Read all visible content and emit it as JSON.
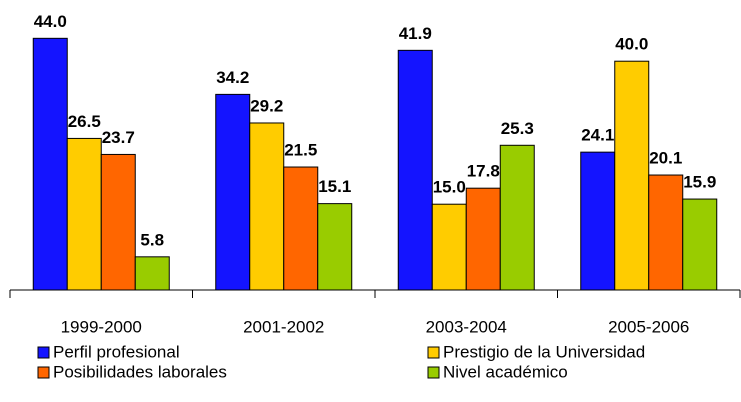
{
  "chart_data": {
    "type": "bar",
    "categories": [
      "1999-2000",
      "2001-2002",
      "2003-2004",
      "2005-2006"
    ],
    "series": [
      {
        "name": "Perfil profesional",
        "color": "#1414ff",
        "values": [
          44.0,
          34.2,
          41.9,
          24.1
        ],
        "value_labels": [
          "44.0",
          "34.2",
          "41.9",
          "24.1"
        ]
      },
      {
        "name": "Prestigio de la Universidad",
        "color": "#ffcc00",
        "values": [
          26.5,
          29.2,
          15.0,
          40.0
        ],
        "value_labels": [
          "26.5",
          "29.2",
          "15.0",
          "40.0"
        ]
      },
      {
        "name": "Posibilidades laborales",
        "color": "#ff6600",
        "values": [
          23.7,
          21.5,
          17.8,
          20.1
        ],
        "value_labels": [
          "23.7",
          "21.5",
          "17.8",
          "20.1"
        ]
      },
      {
        "name": "Nivel académico",
        "color": "#99cc00",
        "values": [
          5.8,
          15.1,
          25.3,
          15.9
        ],
        "value_labels": [
          "5.8",
          "15.1",
          "25.3",
          "15.9"
        ]
      }
    ],
    "ylim": [
      0,
      50
    ]
  }
}
